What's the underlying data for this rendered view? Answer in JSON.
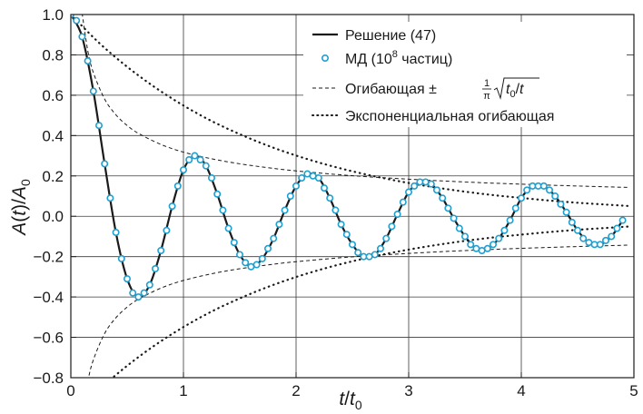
{
  "chart_data": {
    "type": "line",
    "xlabel": "t/t0",
    "ylabel": "A(t)/A0",
    "xlim": [
      0,
      5
    ],
    "ylim": [
      -0.8,
      1.0
    ],
    "x_ticks": [
      "0",
      "1",
      "2",
      "3",
      "4",
      "5"
    ],
    "y_ticks": [
      "−0.8",
      "−0.6",
      "−0.4",
      "−0.2",
      "0.0",
      "0.2",
      "0.4",
      "0.6",
      "0.8",
      "1.0"
    ],
    "grid": true,
    "legend_position": "top-right",
    "legend": [
      {
        "label": "Решение (47)",
        "style": "solid"
      },
      {
        "label": "МД (10",
        "sup": "8",
        "label_after": " частиц)",
        "style": "markers"
      },
      {
        "label": "Огибающая ±",
        "frac_num": "1",
        "frac_den": "π",
        "sqrt_arg": "t0/t",
        "style": "dashed"
      },
      {
        "label": "Экспоненциальная огибающая",
        "style": "dotted"
      }
    ],
    "series": [
      {
        "name": "Решение (47)",
        "style": "solid",
        "x": [
          0.0,
          0.1,
          0.2,
          0.3,
          0.4,
          0.5,
          0.6,
          0.7,
          0.8,
          0.9,
          1.0,
          1.1,
          1.2,
          1.3,
          1.4,
          1.5,
          1.6,
          1.7,
          1.8,
          1.9,
          2.0,
          2.1,
          2.2,
          2.3,
          2.4,
          2.5,
          2.6,
          2.7,
          2.8,
          2.9,
          3.0,
          3.1,
          3.2,
          3.3,
          3.4,
          3.5,
          3.6,
          3.7,
          3.8,
          3.9,
          4.0,
          4.1,
          4.2,
          4.3,
          4.4,
          4.5,
          4.6,
          4.7,
          4.8,
          4.9
        ],
        "y": [
          1.0,
          0.89,
          0.62,
          0.26,
          -0.08,
          -0.31,
          -0.4,
          -0.34,
          -0.17,
          0.05,
          0.23,
          0.3,
          0.25,
          0.11,
          -0.06,
          -0.19,
          -0.25,
          -0.21,
          -0.11,
          0.03,
          0.15,
          0.21,
          0.19,
          0.09,
          -0.04,
          -0.14,
          -0.2,
          -0.19,
          -0.11,
          0.01,
          0.12,
          0.17,
          0.16,
          0.09,
          -0.01,
          -0.1,
          -0.16,
          -0.16,
          -0.11,
          -0.02,
          0.09,
          0.15,
          0.15,
          0.1,
          0.02,
          -0.07,
          -0.13,
          -0.14,
          -0.1,
          -0.02
        ]
      },
      {
        "name": "МД (10^8 частиц)",
        "style": "markers",
        "x": [
          0.0,
          0.05,
          0.1,
          0.15,
          0.2,
          0.25,
          0.3,
          0.35,
          0.4,
          0.45,
          0.5,
          0.55,
          0.6,
          0.65,
          0.7,
          0.75,
          0.8,
          0.85,
          0.9,
          0.95,
          1.0,
          1.05,
          1.1,
          1.15,
          1.2,
          1.25,
          1.3,
          1.35,
          1.4,
          1.45,
          1.5,
          1.55,
          1.6,
          1.65,
          1.7,
          1.75,
          1.8,
          1.85,
          1.9,
          1.95,
          2.0,
          2.05,
          2.1,
          2.15,
          2.2,
          2.25,
          2.3,
          2.35,
          2.4,
          2.45,
          2.5,
          2.55,
          2.6,
          2.65,
          2.7,
          2.75,
          2.8,
          2.85,
          2.9,
          2.95,
          3.0,
          3.05,
          3.1,
          3.15,
          3.2,
          3.25,
          3.3,
          3.35,
          3.4,
          3.45,
          3.5,
          3.55,
          3.6,
          3.65,
          3.7,
          3.75,
          3.8,
          3.85,
          3.9,
          3.95,
          4.0,
          4.05,
          4.1,
          4.15,
          4.2,
          4.25,
          4.3,
          4.35,
          4.4,
          4.45,
          4.5,
          4.55,
          4.6,
          4.65,
          4.7,
          4.75,
          4.8,
          4.85,
          4.9
        ],
        "y": [
          1.0,
          0.97,
          0.89,
          0.77,
          0.62,
          0.45,
          0.26,
          0.09,
          -0.08,
          -0.21,
          -0.31,
          -0.38,
          -0.4,
          -0.38,
          -0.34,
          -0.26,
          -0.17,
          -0.07,
          0.05,
          0.15,
          0.23,
          0.28,
          0.3,
          0.28,
          0.25,
          0.19,
          0.11,
          0.03,
          -0.06,
          -0.13,
          -0.19,
          -0.23,
          -0.25,
          -0.24,
          -0.21,
          -0.16,
          -0.11,
          -0.04,
          0.03,
          0.1,
          0.15,
          0.19,
          0.21,
          0.2,
          0.19,
          0.14,
          0.09,
          0.03,
          -0.04,
          -0.09,
          -0.14,
          -0.18,
          -0.2,
          -0.2,
          -0.19,
          -0.16,
          -0.11,
          -0.05,
          0.01,
          0.07,
          0.12,
          0.15,
          0.17,
          0.17,
          0.16,
          0.13,
          0.09,
          0.04,
          -0.01,
          -0.06,
          -0.1,
          -0.14,
          -0.16,
          -0.17,
          -0.16,
          -0.14,
          -0.11,
          -0.07,
          -0.02,
          0.04,
          0.09,
          0.13,
          0.15,
          0.15,
          0.15,
          0.13,
          0.1,
          0.06,
          0.02,
          -0.03,
          -0.07,
          -0.11,
          -0.13,
          -0.14,
          -0.14,
          -0.12,
          -0.1,
          -0.06,
          -0.02
        ]
      },
      {
        "name": "Огибающая ±(1/π)√(t0/t)",
        "style": "dashed",
        "x": [
          0.1,
          0.15,
          0.2,
          0.3,
          0.4,
          0.5,
          0.6,
          0.8,
          1.0,
          1.25,
          1.5,
          1.75,
          2.0,
          2.5,
          3.0,
          3.5,
          4.0,
          4.5,
          4.95
        ],
        "y": [
          1.007,
          0.822,
          0.712,
          0.581,
          0.503,
          0.45,
          0.411,
          0.356,
          0.318,
          0.285,
          0.26,
          0.241,
          0.225,
          0.201,
          0.184,
          0.17,
          0.159,
          0.15,
          0.143
        ]
      },
      {
        "name": "Экспоненциальная огибающая",
        "style": "dotted",
        "x": [
          0.0,
          0.25,
          0.5,
          0.75,
          1.0,
          1.25,
          1.5,
          1.75,
          2.0,
          2.25,
          2.5,
          2.75,
          3.0,
          3.25,
          3.5,
          3.75,
          4.0,
          4.25,
          4.5,
          4.75,
          4.95
        ],
        "y": [
          1.0,
          0.86,
          0.741,
          0.638,
          0.549,
          0.472,
          0.407,
          0.35,
          0.301,
          0.259,
          0.223,
          0.192,
          0.165,
          0.142,
          0.122,
          0.105,
          0.091,
          0.078,
          0.067,
          0.058,
          0.051
        ]
      }
    ]
  }
}
